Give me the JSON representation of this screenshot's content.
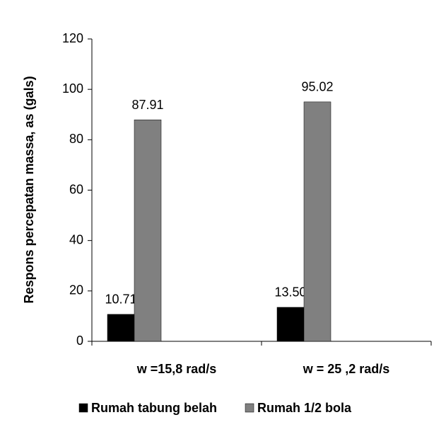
{
  "chart_data": {
    "type": "bar",
    "y_label": "Respons percepatan massa, as  (gals)",
    "categories": [
      "w =15,8 rad/s",
      "w = 25 ,2 rad/s"
    ],
    "series": [
      {
        "name": "Rumah tabung belah",
        "color": "#000000",
        "values": [
          10.71,
          13.5
        ],
        "value_labels": [
          "10.71",
          "13.50"
        ]
      },
      {
        "name": "Rumah 1/2 bola",
        "color": "#808080",
        "values": [
          87.91,
          95.02
        ],
        "value_labels": [
          "87.91",
          "95.02"
        ]
      }
    ],
    "ylim": [
      0,
      120
    ],
    "yticks": [
      0,
      20,
      40,
      60,
      80,
      100,
      120
    ],
    "grid": false,
    "legend": "bottom"
  }
}
